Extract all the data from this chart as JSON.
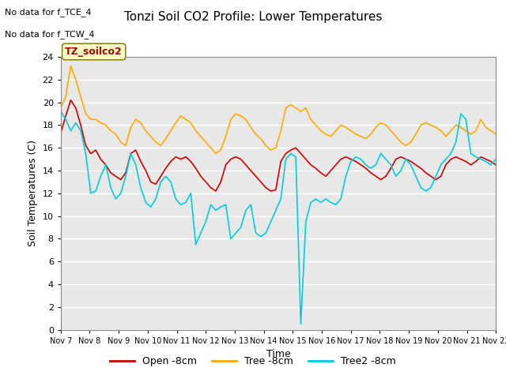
{
  "title": "Tonzi Soil CO2 Profile: Lower Temperatures",
  "xlabel": "Time",
  "ylabel": "Soil Temperatures (C)",
  "annotation_lines": [
    "No data for f_TCE_4",
    "No data for f_TCW_4"
  ],
  "legend_box_label": "TZ_soilco2",
  "ylim": [
    0,
    24
  ],
  "yticks": [
    0,
    2,
    4,
    6,
    8,
    10,
    12,
    14,
    16,
    18,
    20,
    22,
    24
  ],
  "xtick_labels": [
    "Nov 7",
    "Nov 8",
    "Nov 9",
    "Nov 10",
    "Nov 11",
    "Nov 12",
    "Nov 13",
    "Nov 14",
    "Nov 15",
    "Nov 16",
    "Nov 17",
    "Nov 18",
    "Nov 19",
    "Nov 20",
    "Nov 21",
    "Nov 22"
  ],
  "bg_color": "#e8e8e8",
  "fig_bg": "#ffffff",
  "line_colors": {
    "open": "#cc0000",
    "tree": "#ffaa00",
    "tree2": "#00ccdd"
  },
  "legend_labels": [
    "Open -8cm",
    "Tree -8cm",
    "Tree2 -8cm"
  ],
  "open_data": [
    17.3,
    18.8,
    20.2,
    19.5,
    18.0,
    16.2,
    15.5,
    15.8,
    15.0,
    14.5,
    13.8,
    13.5,
    13.2,
    13.8,
    15.5,
    15.8,
    14.8,
    14.0,
    13.0,
    12.8,
    13.5,
    14.2,
    14.8,
    15.2,
    15.0,
    15.2,
    14.8,
    14.2,
    13.5,
    13.0,
    12.5,
    12.2,
    13.0,
    14.5,
    15.0,
    15.2,
    15.0,
    14.5,
    14.0,
    13.5,
    13.0,
    12.5,
    12.2,
    12.3,
    14.8,
    15.5,
    15.8,
    16.0,
    15.5,
    15.0,
    14.5,
    14.2,
    13.8,
    13.5,
    14.0,
    14.5,
    15.0,
    15.2,
    15.0,
    14.8,
    14.5,
    14.2,
    13.8,
    13.5,
    13.2,
    13.5,
    14.2,
    15.0,
    15.2,
    15.0,
    14.8,
    14.5,
    14.2,
    13.8,
    13.5,
    13.2,
    13.5,
    14.5,
    15.0,
    15.2,
    15.0,
    14.8,
    14.5,
    14.8,
    15.2,
    15.0,
    14.8,
    14.5
  ],
  "tree_data": [
    19.5,
    20.5,
    23.2,
    22.0,
    20.5,
    19.0,
    18.5,
    18.5,
    18.2,
    18.0,
    17.5,
    17.2,
    16.5,
    16.2,
    17.8,
    18.5,
    18.2,
    17.5,
    17.0,
    16.5,
    16.2,
    16.8,
    17.5,
    18.2,
    18.8,
    18.5,
    18.2,
    17.5,
    17.0,
    16.5,
    16.0,
    15.5,
    15.8,
    17.0,
    18.5,
    19.0,
    18.8,
    18.5,
    17.8,
    17.2,
    16.8,
    16.2,
    15.8,
    16.0,
    17.5,
    19.5,
    19.8,
    19.5,
    19.2,
    19.5,
    18.5,
    18.0,
    17.5,
    17.2,
    17.0,
    17.5,
    18.0,
    17.8,
    17.5,
    17.2,
    17.0,
    16.8,
    17.2,
    17.8,
    18.2,
    18.0,
    17.5,
    17.0,
    16.5,
    16.2,
    16.5,
    17.2,
    18.0,
    18.2,
    18.0,
    17.8,
    17.5,
    17.0,
    17.5,
    18.0,
    17.8,
    17.5,
    17.2,
    17.5,
    18.5,
    17.8,
    17.5,
    17.2
  ],
  "tree2_data": [
    19.2,
    18.5,
    17.5,
    18.2,
    17.5,
    15.5,
    12.0,
    12.2,
    13.5,
    14.5,
    12.5,
    11.5,
    12.0,
    13.5,
    15.5,
    14.5,
    12.5,
    11.2,
    10.8,
    11.5,
    13.0,
    13.5,
    13.0,
    11.5,
    11.0,
    11.2,
    12.0,
    7.5,
    8.5,
    9.5,
    11.0,
    10.5,
    10.8,
    11.0,
    8.0,
    8.5,
    9.0,
    10.5,
    11.0,
    8.5,
    8.2,
    8.5,
    9.5,
    10.5,
    11.5,
    15.0,
    15.5,
    15.2,
    0.5,
    9.5,
    11.2,
    11.5,
    11.2,
    11.5,
    11.2,
    11.0,
    11.5,
    13.5,
    14.8,
    15.2,
    15.0,
    14.5,
    14.2,
    14.5,
    15.5,
    15.0,
    14.5,
    13.5,
    14.0,
    15.0,
    14.5,
    13.5,
    12.5,
    12.2,
    12.5,
    13.5,
    14.5,
    15.0,
    15.5,
    16.5,
    19.0,
    18.5,
    15.5,
    15.2,
    15.0,
    14.8,
    14.5,
    15.0
  ]
}
